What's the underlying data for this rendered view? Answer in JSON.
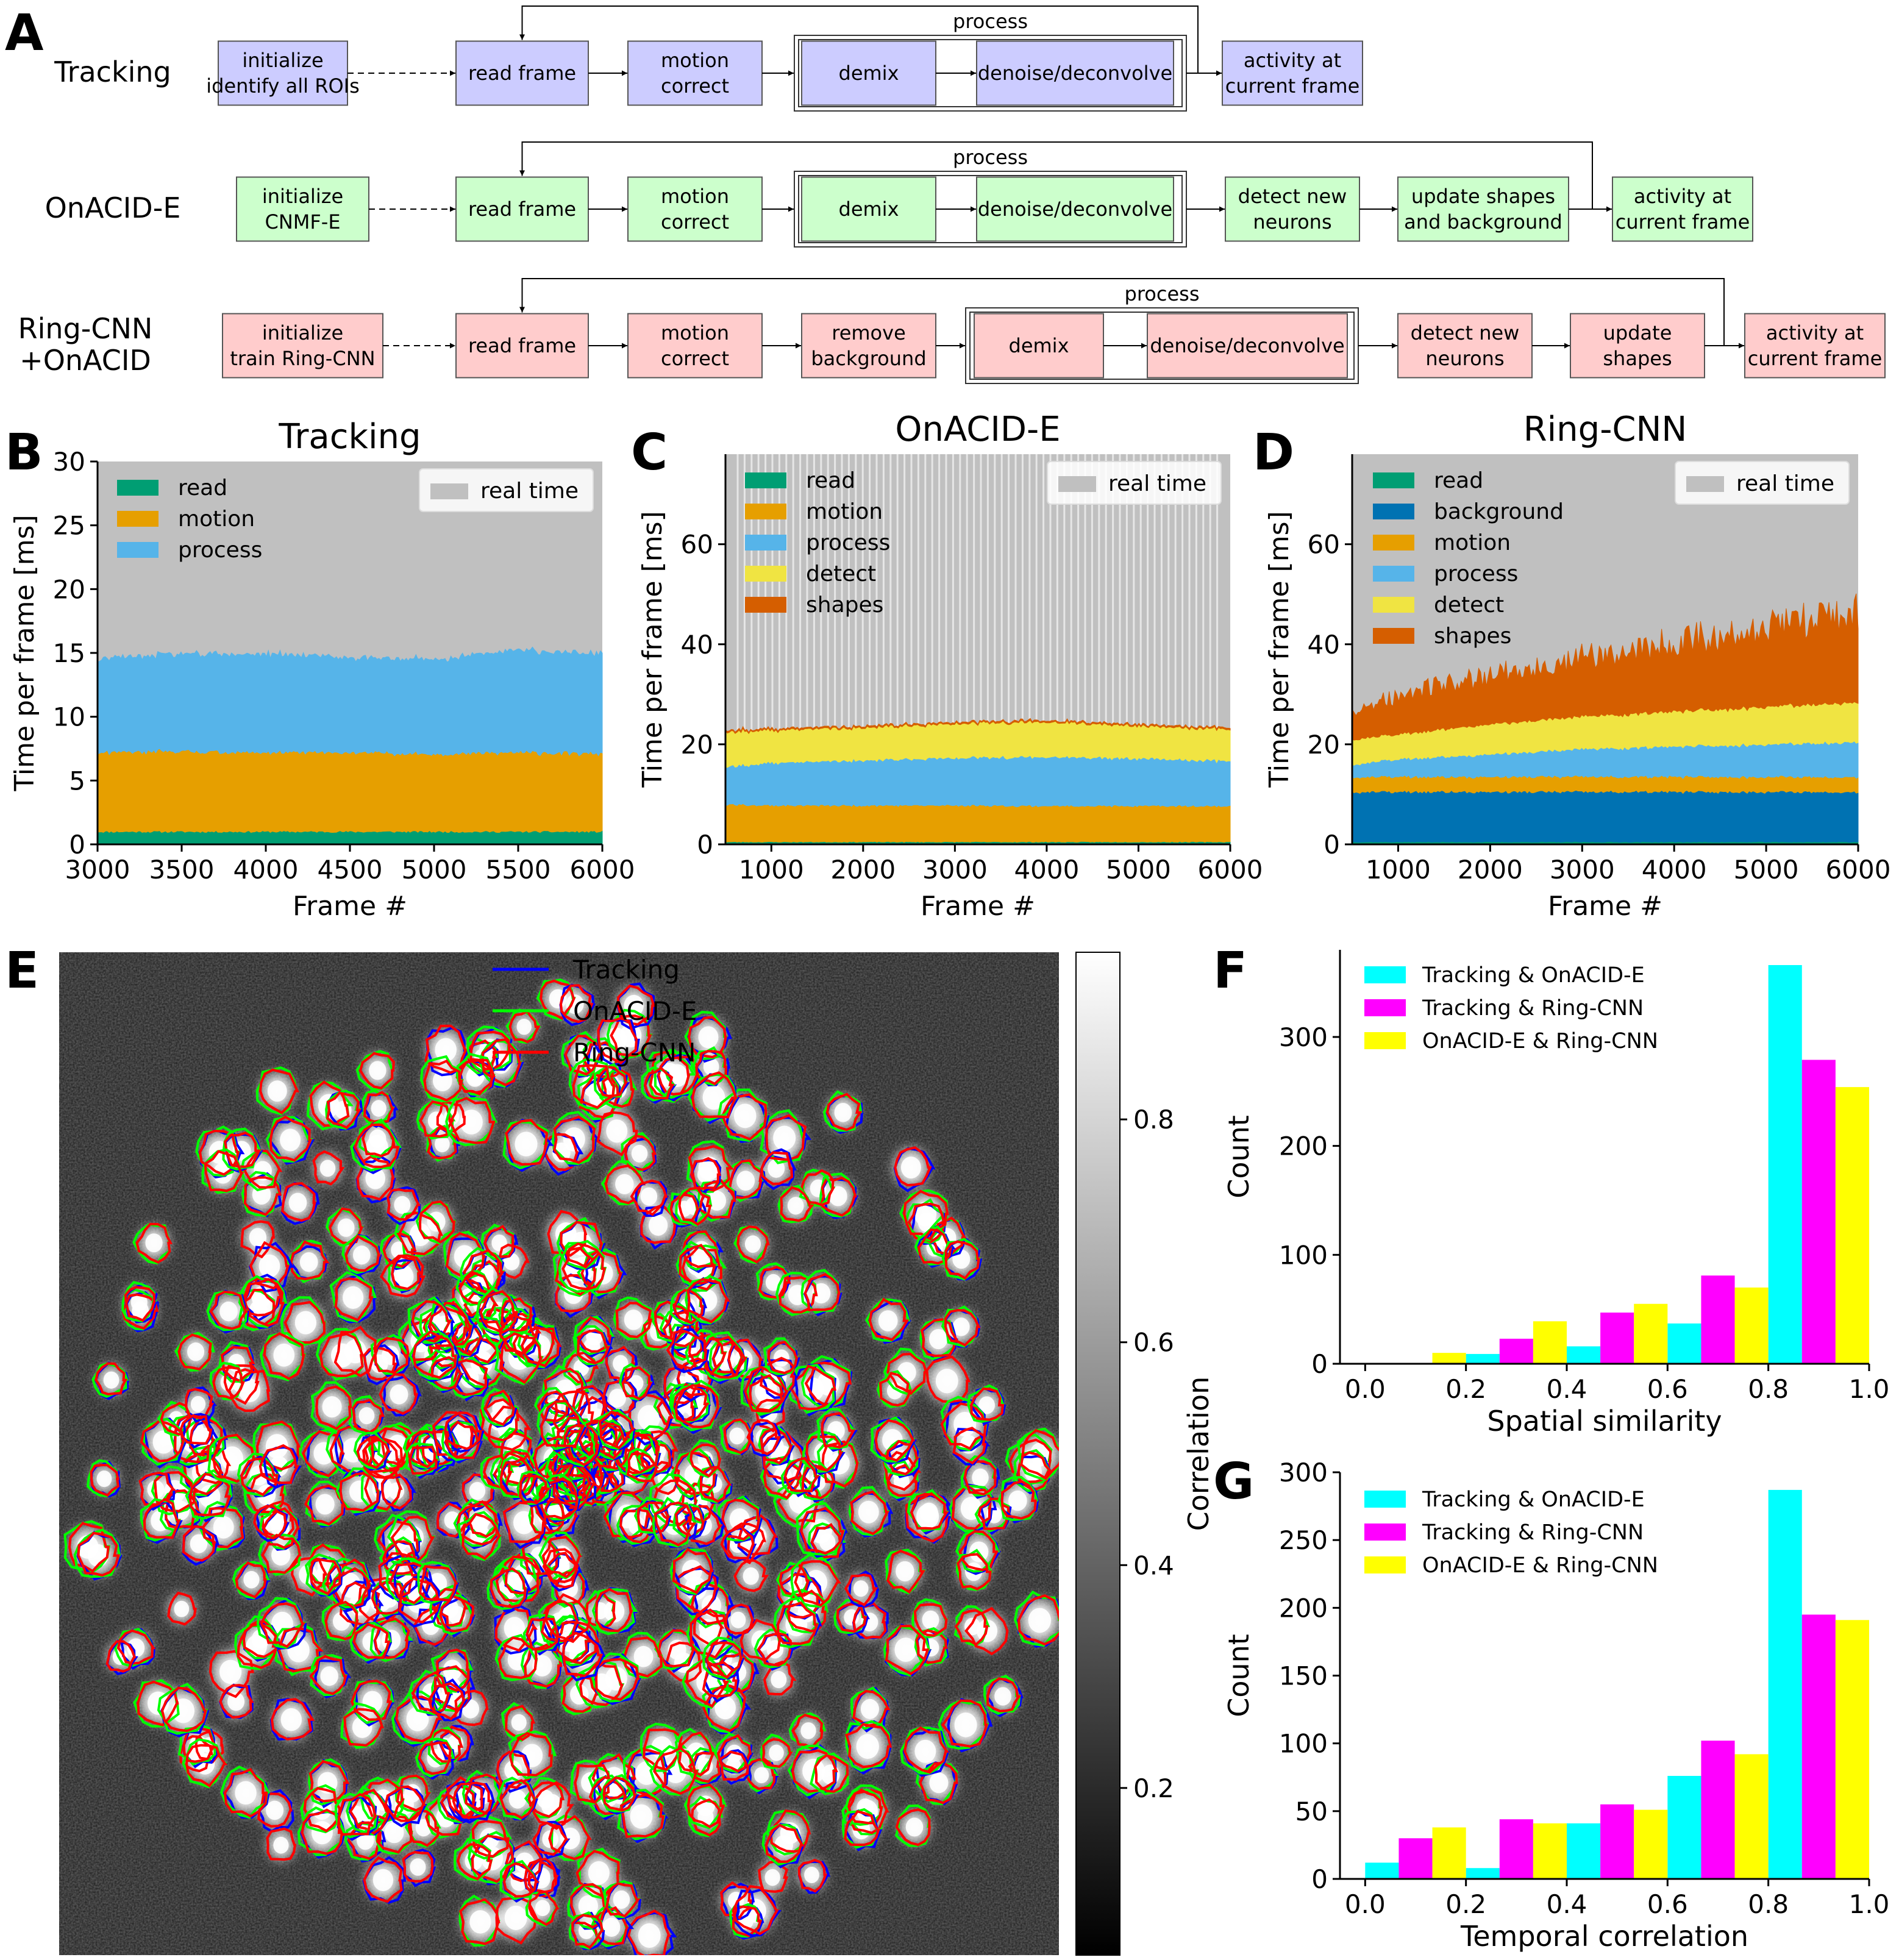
{
  "panels": {
    "A": "A",
    "B": "B",
    "C": "C",
    "D": "D",
    "E": "E",
    "F": "F",
    "G": "G"
  },
  "flowcharts": [
    {
      "label": [
        "Tracking"
      ],
      "fill": "#ccccff",
      "process_label": "process",
      "boxes": [
        [
          "initialize",
          "identify all ROIs"
        ],
        [
          "read frame"
        ],
        [
          "motion",
          "correct"
        ],
        [
          "demix"
        ],
        [
          "denoise/deconvolve"
        ],
        [
          "activity at",
          "current frame"
        ]
      ]
    },
    {
      "label": [
        "OnACID-E"
      ],
      "fill": "#ccffcc",
      "process_label": "process",
      "boxes": [
        [
          "initialize",
          "CNMF-E"
        ],
        [
          "read frame"
        ],
        [
          "motion",
          "correct"
        ],
        [
          "demix"
        ],
        [
          "denoise/deconvolve"
        ],
        [
          "detect new",
          "neurons"
        ],
        [
          "update shapes",
          "and background"
        ],
        [
          "activity at",
          "current frame"
        ]
      ]
    },
    {
      "label": [
        "Ring-CNN",
        "+OnACID"
      ],
      "fill": "#ffcccc",
      "process_label": "process",
      "boxes": [
        [
          "initialize",
          "train Ring-CNN"
        ],
        [
          "read frame"
        ],
        [
          "motion",
          "correct"
        ],
        [
          "remove",
          "background"
        ],
        [
          "demix"
        ],
        [
          "denoise/deconvolve"
        ],
        [
          "detect new",
          "neurons"
        ],
        [
          "update",
          "shapes"
        ],
        [
          "activity at",
          "current frame"
        ]
      ]
    }
  ],
  "chart_data": [
    {
      "panel": "B",
      "type": "area",
      "title": "Tracking",
      "xlabel": "Frame #",
      "ylabel": "Time per frame [ms]",
      "xlim": [
        3000,
        6000
      ],
      "ylim": [
        0,
        30
      ],
      "xticks": [
        3000,
        3500,
        4000,
        4500,
        5000,
        5500,
        6000
      ],
      "yticks": [
        0,
        5,
        10,
        15,
        20,
        25,
        30
      ],
      "background_legend": "real time",
      "background_color": "#c0c0c0",
      "series": [
        {
          "name": "read",
          "color": "#009e73",
          "values": [
            1,
            1,
            1,
            1,
            1,
            1,
            1
          ]
        },
        {
          "name": "motion",
          "color": "#e69f00",
          "values": [
            6.2,
            6.3,
            6.2,
            6.2,
            6.1,
            6.2,
            6.1
          ]
        },
        {
          "name": "process",
          "color": "#56b4e9",
          "values": [
            7.3,
            7.6,
            7.7,
            7.4,
            7.4,
            8.0,
            7.8
          ]
        }
      ],
      "x": [
        3000,
        3500,
        4000,
        4500,
        5000,
        5500,
        6000
      ]
    },
    {
      "panel": "C",
      "type": "area",
      "title": "OnACID-E",
      "xlabel": "Frame #",
      "ylabel": "Time per frame [ms]",
      "xlim": [
        500,
        6000
      ],
      "ylim": [
        0,
        78
      ],
      "xticks": [
        1000,
        2000,
        3000,
        4000,
        5000,
        6000
      ],
      "yticks": [
        0,
        20,
        40,
        60
      ],
      "background_legend": "real time",
      "background_color": "#c0c0c0",
      "series": [
        {
          "name": "read",
          "color": "#009e73",
          "values": [
            0.5,
            0.5,
            0.5,
            0.5,
            0.5,
            0.5,
            0.5
          ]
        },
        {
          "name": "motion",
          "color": "#e69f00",
          "values": [
            7.5,
            7.3,
            7.3,
            7.3,
            7.2,
            7.2,
            7.2
          ]
        },
        {
          "name": "process",
          "color": "#56b4e9",
          "values": [
            7.5,
            8.5,
            9.0,
            9.5,
            9.8,
            9.5,
            9.0
          ]
        },
        {
          "name": "detect",
          "color": "#f0e442",
          "values": [
            7,
            6.5,
            6.5,
            6.8,
            7,
            6.5,
            6.3
          ]
        },
        {
          "name": "shapes",
          "color": "#d55e00",
          "values": [
            0.3,
            0.3,
            0.3,
            0.3,
            0.3,
            0.3,
            0.3
          ]
        }
      ],
      "x": [
        500,
        1000,
        2000,
        3000,
        4000,
        5000,
        6000
      ]
    },
    {
      "panel": "D",
      "type": "area",
      "title": "Ring-CNN",
      "xlabel": "Frame #",
      "ylabel": "Time per frame [ms]",
      "xlim": [
        500,
        6000
      ],
      "ylim": [
        0,
        78
      ],
      "xticks": [
        1000,
        2000,
        3000,
        4000,
        5000,
        6000
      ],
      "yticks": [
        0,
        20,
        40,
        60
      ],
      "background_legend": "real time",
      "background_color": "#c0c0c0",
      "series": [
        {
          "name": "read",
          "color": "#009e73",
          "values": [
            0.5,
            0.5,
            0.5,
            0.5,
            0.5,
            0.5,
            0.5
          ]
        },
        {
          "name": "background",
          "color": "#0072b2",
          "values": [
            10,
            10,
            10,
            10,
            10,
            10,
            10
          ]
        },
        {
          "name": "motion",
          "color": "#e69f00",
          "values": [
            3,
            3,
            3,
            3,
            3,
            3,
            3
          ]
        },
        {
          "name": "process",
          "color": "#56b4e9",
          "values": [
            2.5,
            3.5,
            4.5,
            5.5,
            6,
            6.5,
            7
          ]
        },
        {
          "name": "detect",
          "color": "#f0e442",
          "values": [
            5,
            5,
            6,
            6.5,
            7,
            7.5,
            8
          ]
        },
        {
          "name": "shapes",
          "color": "#d55e00",
          "values": [
            5,
            8,
            10,
            12,
            14,
            16,
            18
          ]
        }
      ],
      "x": [
        500,
        1000,
        2000,
        3000,
        4000,
        5000,
        6000
      ]
    },
    {
      "panel": "F",
      "type": "bar",
      "xlabel": "Spatial similarity",
      "ylabel": "Count",
      "xlim": [
        -0.05,
        1.0
      ],
      "ylim": [
        0,
        380
      ],
      "xticks": [
        0.0,
        0.2,
        0.4,
        0.6,
        0.8,
        1.0
      ],
      "yticks": [
        0,
        100,
        200,
        300
      ],
      "bin_centers": [
        0.1,
        0.3,
        0.5,
        0.7,
        0.9
      ],
      "series": [
        {
          "name": "Tracking & OnACID-E",
          "color": "#00ffff",
          "values": [
            0,
            9,
            16,
            37,
            366
          ]
        },
        {
          "name": "Tracking & Ring-CNN",
          "color": "#ff00ff",
          "values": [
            0,
            23,
            47,
            81,
            279
          ]
        },
        {
          "name": "OnACID-E & Ring-CNN",
          "color": "#ffff00",
          "values": [
            10,
            39,
            55,
            70,
            254
          ]
        }
      ]
    },
    {
      "panel": "G",
      "type": "bar",
      "xlabel": "Temporal correlation",
      "ylabel": "Count",
      "xlim": [
        -0.05,
        1.0
      ],
      "ylim": [
        0,
        300
      ],
      "xticks": [
        0.0,
        0.2,
        0.4,
        0.6,
        0.8,
        1.0
      ],
      "yticks": [
        0,
        50,
        100,
        150,
        200,
        250,
        300
      ],
      "bin_centers": [
        0.1,
        0.3,
        0.5,
        0.7,
        0.9
      ],
      "series": [
        {
          "name": "Tracking & OnACID-E",
          "color": "#00ffff",
          "values": [
            12,
            8,
            41,
            76,
            287
          ]
        },
        {
          "name": "Tracking & Ring-CNN",
          "color": "#ff00ff",
          "values": [
            30,
            44,
            55,
            102,
            195
          ]
        },
        {
          "name": "OnACID-E & Ring-CNN",
          "color": "#ffff00",
          "values": [
            38,
            41,
            51,
            92,
            191
          ]
        }
      ]
    }
  ],
  "image_panel": {
    "panel": "E",
    "legend": [
      {
        "name": "Tracking",
        "color": "#0000ff"
      },
      {
        "name": "OnACID-E",
        "color": "#00ff00"
      },
      {
        "name": "Ring-CNN",
        "color": "#ff0000"
      }
    ],
    "colorbar_label": "Correlation",
    "colorbar_ticks": [
      0.2,
      0.4,
      0.6,
      0.8
    ],
    "colorbar_range": [
      0.05,
      0.95
    ]
  }
}
